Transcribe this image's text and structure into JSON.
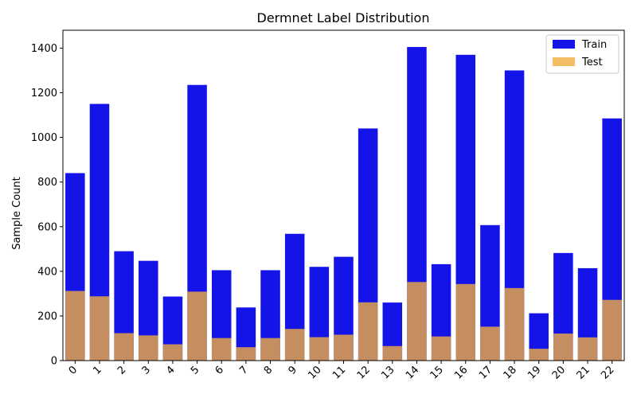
{
  "chart_data": {
    "type": "bar",
    "title": "Dermnet Label Distribution",
    "xlabel": "",
    "ylabel": "Sample Count",
    "ylim": [
      0,
      1480
    ],
    "yticks": [
      0,
      200,
      400,
      600,
      800,
      1000,
      1200,
      1400
    ],
    "categories": [
      "0",
      "1",
      "2",
      "3",
      "4",
      "5",
      "6",
      "7",
      "8",
      "9",
      "10",
      "11",
      "12",
      "13",
      "14",
      "15",
      "16",
      "17",
      "18",
      "19",
      "20",
      "21",
      "22"
    ],
    "series": [
      {
        "name": "Train",
        "color": "#1414e8",
        "values": [
          840,
          1150,
          490,
          447,
          287,
          1235,
          405,
          238,
          405,
          568,
          420,
          465,
          1040,
          260,
          1405,
          432,
          1370,
          607,
          1300,
          212,
          482,
          414,
          1085
        ]
      },
      {
        "name": "Test",
        "color": "#f0ac3d",
        "opacity": 0.8,
        "values": [
          312,
          288,
          123,
          113,
          73,
          309,
          101,
          60,
          101,
          142,
          105,
          116,
          261,
          65,
          352,
          108,
          343,
          152,
          325,
          53,
          121,
          104,
          272
        ]
      }
    ],
    "legend_position": "top-right",
    "grid": false
  }
}
